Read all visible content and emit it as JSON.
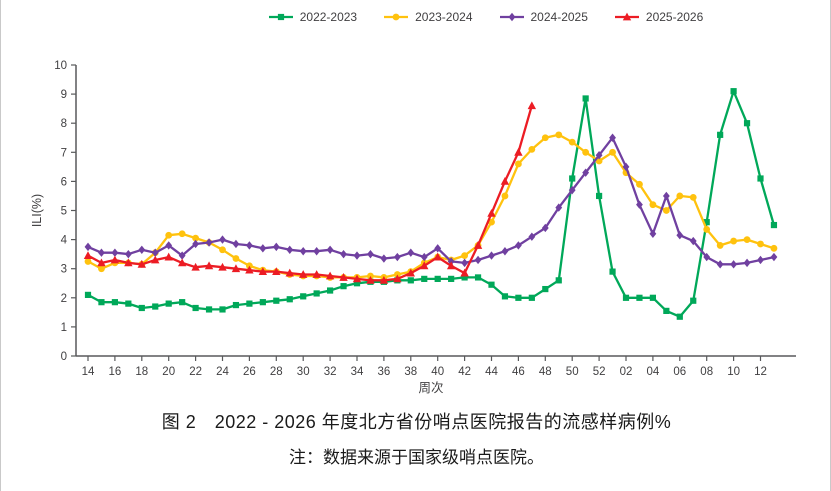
{
  "figure": {
    "title": "图 2　2022 - 2026 年度北方省份哨点医院报告的流感样病例%",
    "note": "注：数据来源于国家级哨点医院。"
  },
  "legend": [
    {
      "label": "2022-2023",
      "color": "#00A859",
      "marker": "square"
    },
    {
      "label": "2023-2024",
      "color": "#FFC20E",
      "marker": "circle"
    },
    {
      "label": "2024-2025",
      "color": "#7040A0",
      "marker": "diamond"
    },
    {
      "label": "2025-2026",
      "color": "#EC1C24",
      "marker": "triangle"
    }
  ],
  "chart_data": {
    "type": "line",
    "title": "图 2　2022 - 2026 年度北方省份哨点医院报告的流感样病例%",
    "note": "注：数据来源于国家级哨点医院。",
    "xlabel": "周次",
    "ylabel": "ILI(%)",
    "ylim": [
      0,
      10
    ],
    "ytick_interval": 1,
    "grid": false,
    "legend_position": "top-center",
    "y_tick_labels": [
      "0",
      "1",
      "2",
      "3",
      "4",
      "5",
      "6",
      "7",
      "8",
      "9",
      "10"
    ],
    "x_tick_labels": [
      "14",
      "16",
      "18",
      "20",
      "22",
      "24",
      "26",
      "28",
      "30",
      "32",
      "34",
      "36",
      "38",
      "40",
      "42",
      "44",
      "46",
      "48",
      "50",
      "52",
      "02",
      "04",
      "06",
      "08",
      "10",
      "12"
    ],
    "weeks": [
      "14",
      "15",
      "16",
      "17",
      "18",
      "19",
      "20",
      "21",
      "22",
      "23",
      "24",
      "25",
      "26",
      "27",
      "28",
      "29",
      "30",
      "31",
      "32",
      "33",
      "34",
      "35",
      "36",
      "37",
      "38",
      "39",
      "40",
      "41",
      "42",
      "43",
      "44",
      "45",
      "46",
      "47",
      "48",
      "49",
      "50",
      "51",
      "52",
      "01",
      "02",
      "03",
      "04",
      "05",
      "06",
      "07",
      "08",
      "09",
      "10",
      "11",
      "12",
      "13"
    ],
    "series": [
      {
        "name": "2022-2023",
        "color": "#00A859",
        "marker": "square",
        "values": [
          2.1,
          1.85,
          1.85,
          1.8,
          1.65,
          1.7,
          1.8,
          1.85,
          1.65,
          1.6,
          1.6,
          1.75,
          1.8,
          1.85,
          1.9,
          1.95,
          2.05,
          2.15,
          2.25,
          2.4,
          2.5,
          2.55,
          2.55,
          2.6,
          2.6,
          2.65,
          2.65,
          2.65,
          2.7,
          2.7,
          2.45,
          2.05,
          2.0,
          2.0,
          2.3,
          2.6,
          6.1,
          8.85,
          5.5,
          2.9,
          2.0,
          2.0,
          2.0,
          1.55,
          1.35,
          1.9,
          4.6,
          7.6,
          9.1,
          8.0,
          6.1,
          4.5
        ]
      },
      {
        "name": "2023-2024",
        "color": "#FFC20E",
        "marker": "circle",
        "values": [
          3.25,
          3.0,
          3.2,
          3.2,
          3.15,
          3.55,
          4.15,
          4.2,
          4.05,
          3.9,
          3.65,
          3.35,
          3.1,
          2.95,
          2.9,
          2.8,
          2.75,
          2.75,
          2.7,
          2.7,
          2.7,
          2.75,
          2.7,
          2.8,
          2.9,
          3.2,
          3.4,
          3.3,
          3.45,
          3.8,
          4.6,
          5.5,
          6.6,
          7.1,
          7.5,
          7.6,
          7.35,
          7.0,
          6.7,
          7.0,
          6.3,
          5.9,
          5.2,
          5.0,
          5.5,
          5.45,
          4.35,
          3.8,
          3.95,
          4.0,
          3.85,
          3.7
        ]
      },
      {
        "name": "2024-2025",
        "color": "#7040A0",
        "marker": "diamond",
        "values": [
          3.75,
          3.55,
          3.55,
          3.5,
          3.65,
          3.55,
          3.8,
          3.45,
          3.85,
          3.9,
          4.0,
          3.85,
          3.8,
          3.7,
          3.75,
          3.65,
          3.6,
          3.6,
          3.65,
          3.5,
          3.45,
          3.5,
          3.35,
          3.4,
          3.55,
          3.4,
          3.7,
          3.25,
          3.2,
          3.3,
          3.45,
          3.6,
          3.8,
          4.1,
          4.4,
          5.1,
          5.7,
          6.3,
          6.9,
          7.5,
          6.5,
          5.2,
          4.2,
          5.5,
          4.15,
          3.95,
          3.4,
          3.15,
          3.15,
          3.2,
          3.3,
          3.4
        ]
      },
      {
        "name": "2025-2026",
        "color": "#EC1C24",
        "marker": "triangle",
        "values": [
          3.45,
          3.2,
          3.3,
          3.2,
          3.15,
          3.3,
          3.4,
          3.2,
          3.05,
          3.1,
          3.05,
          3.0,
          2.95,
          2.9,
          2.9,
          2.85,
          2.8,
          2.8,
          2.75,
          2.7,
          2.65,
          2.6,
          2.6,
          2.65,
          2.85,
          3.1,
          3.4,
          3.1,
          2.85,
          3.8,
          4.9,
          6.0,
          7.0,
          8.6
        ]
      }
    ]
  }
}
